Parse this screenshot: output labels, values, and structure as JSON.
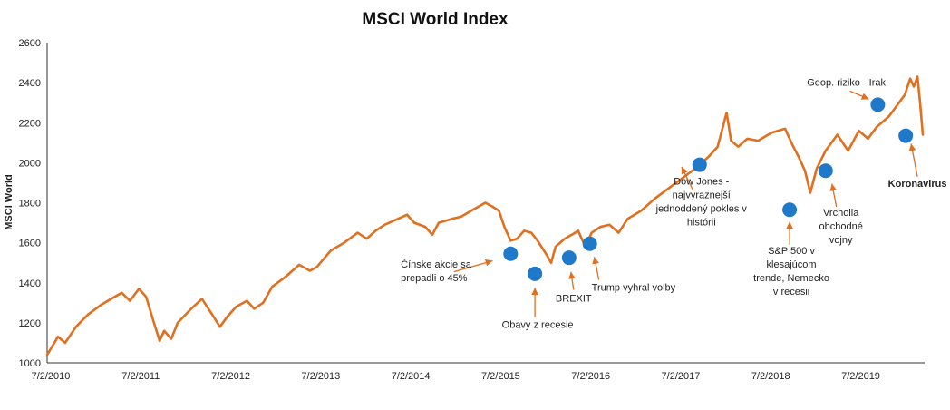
{
  "colors": {
    "line": "#E07020",
    "marker": "#1F78C8",
    "arrow": "#E07020",
    "axis": "#333333"
  },
  "chart_data": {
    "type": "line",
    "title": "MSCI World Index",
    "ylabel": "MSCI World",
    "xlabel": "",
    "ylim": [
      1000,
      2600
    ],
    "yticks": [
      1000,
      1200,
      1400,
      1600,
      1800,
      2000,
      2200,
      2400,
      2600
    ],
    "xlim": [
      2010.5,
      2020.25
    ],
    "xticks": [
      {
        "x": 2010.5,
        "label": "7/2/2010"
      },
      {
        "x": 2011.5,
        "label": "7/2/2011"
      },
      {
        "x": 2012.5,
        "label": "7/2/2012"
      },
      {
        "x": 2013.5,
        "label": "7/2/2013"
      },
      {
        "x": 2014.5,
        "label": "7/2/2014"
      },
      {
        "x": 2015.5,
        "label": "7/2/2015"
      },
      {
        "x": 2016.5,
        "label": "7/2/2016"
      },
      {
        "x": 2017.5,
        "label": "7/2/2017"
      },
      {
        "x": 2018.5,
        "label": "7/2/2018"
      },
      {
        "x": 2019.5,
        "label": "7/2/2019"
      }
    ],
    "series": [
      {
        "name": "MSCI World",
        "points": [
          [
            2010.5,
            1040
          ],
          [
            2010.62,
            1130
          ],
          [
            2010.7,
            1100
          ],
          [
            2010.82,
            1180
          ],
          [
            2010.95,
            1240
          ],
          [
            2011.1,
            1290
          ],
          [
            2011.25,
            1330
          ],
          [
            2011.33,
            1350
          ],
          [
            2011.42,
            1310
          ],
          [
            2011.52,
            1370
          ],
          [
            2011.6,
            1330
          ],
          [
            2011.68,
            1210
          ],
          [
            2011.75,
            1110
          ],
          [
            2011.8,
            1160
          ],
          [
            2011.88,
            1120
          ],
          [
            2011.95,
            1200
          ],
          [
            2012.1,
            1270
          ],
          [
            2012.22,
            1320
          ],
          [
            2012.35,
            1230
          ],
          [
            2012.42,
            1180
          ],
          [
            2012.5,
            1230
          ],
          [
            2012.6,
            1280
          ],
          [
            2012.72,
            1310
          ],
          [
            2012.8,
            1270
          ],
          [
            2012.9,
            1300
          ],
          [
            2013.0,
            1380
          ],
          [
            2013.15,
            1430
          ],
          [
            2013.3,
            1490
          ],
          [
            2013.42,
            1460
          ],
          [
            2013.5,
            1480
          ],
          [
            2013.65,
            1560
          ],
          [
            2013.8,
            1600
          ],
          [
            2013.95,
            1650
          ],
          [
            2014.05,
            1620
          ],
          [
            2014.15,
            1660
          ],
          [
            2014.25,
            1690
          ],
          [
            2014.4,
            1720
          ],
          [
            2014.5,
            1740
          ],
          [
            2014.58,
            1700
          ],
          [
            2014.7,
            1680
          ],
          [
            2014.78,
            1640
          ],
          [
            2014.85,
            1700
          ],
          [
            2015.0,
            1720
          ],
          [
            2015.1,
            1730
          ],
          [
            2015.25,
            1770
          ],
          [
            2015.37,
            1800
          ],
          [
            2015.45,
            1780
          ],
          [
            2015.52,
            1760
          ],
          [
            2015.58,
            1680
          ],
          [
            2015.65,
            1610
          ],
          [
            2015.72,
            1620
          ],
          [
            2015.8,
            1660
          ],
          [
            2015.88,
            1650
          ],
          [
            2015.95,
            1610
          ],
          [
            2016.05,
            1540
          ],
          [
            2016.1,
            1500
          ],
          [
            2016.15,
            1580
          ],
          [
            2016.25,
            1620
          ],
          [
            2016.33,
            1640
          ],
          [
            2016.4,
            1660
          ],
          [
            2016.48,
            1580
          ],
          [
            2016.55,
            1650
          ],
          [
            2016.65,
            1680
          ],
          [
            2016.75,
            1690
          ],
          [
            2016.85,
            1650
          ],
          [
            2016.95,
            1720
          ],
          [
            2017.1,
            1760
          ],
          [
            2017.25,
            1820
          ],
          [
            2017.4,
            1870
          ],
          [
            2017.55,
            1920
          ],
          [
            2017.7,
            1970
          ],
          [
            2017.85,
            2030
          ],
          [
            2017.95,
            2080
          ],
          [
            2018.05,
            2250
          ],
          [
            2018.1,
            2110
          ],
          [
            2018.18,
            2080
          ],
          [
            2018.28,
            2120
          ],
          [
            2018.4,
            2110
          ],
          [
            2018.55,
            2150
          ],
          [
            2018.7,
            2170
          ],
          [
            2018.78,
            2090
          ],
          [
            2018.85,
            2030
          ],
          [
            2018.92,
            1960
          ],
          [
            2018.98,
            1850
          ],
          [
            2019.05,
            1970
          ],
          [
            2019.15,
            2060
          ],
          [
            2019.28,
            2140
          ],
          [
            2019.4,
            2060
          ],
          [
            2019.52,
            2160
          ],
          [
            2019.62,
            2120
          ],
          [
            2019.72,
            2180
          ],
          [
            2019.85,
            2230
          ],
          [
            2019.95,
            2290
          ],
          [
            2020.03,
            2340
          ],
          [
            2020.09,
            2420
          ],
          [
            2020.13,
            2380
          ],
          [
            2020.17,
            2430
          ],
          [
            2020.2,
            2300
          ],
          [
            2020.23,
            2140
          ]
        ]
      }
    ],
    "markers": [
      {
        "x": 2015.65,
        "y": 1545
      },
      {
        "x": 2015.92,
        "y": 1445
      },
      {
        "x": 2016.3,
        "y": 1525
      },
      {
        "x": 2016.53,
        "y": 1595
      },
      {
        "x": 2017.75,
        "y": 1990
      },
      {
        "x": 2018.75,
        "y": 1765
      },
      {
        "x": 2019.15,
        "y": 1960
      },
      {
        "x": 2019.73,
        "y": 2290
      },
      {
        "x": 2020.04,
        "y": 2135
      }
    ],
    "annotations": [
      {
        "lines": [
          "Čínske akcie sa",
          "prepadli o 45%"
        ],
        "bold": false,
        "tx": 2014.43,
        "ty": 1475,
        "anchor": "start",
        "arrow": [
          2015.02,
          1455,
          2015.45,
          1510
        ]
      },
      {
        "lines": [
          "Obavy z recesie"
        ],
        "bold": false,
        "tx": 2015.95,
        "ty": 1175,
        "anchor": "middle",
        "arrow": [
          2015.92,
          1228,
          2015.92,
          1375
        ]
      },
      {
        "lines": [
          "BREXIT"
        ],
        "bold": false,
        "tx": 2016.35,
        "ty": 1305,
        "anchor": "middle",
        "arrow": [
          2016.35,
          1365,
          2016.32,
          1455
        ]
      },
      {
        "lines": [
          "Trump vyhral volby"
        ],
        "bold": false,
        "tx": 2016.55,
        "ty": 1360,
        "anchor": "start",
        "arrow": [
          2016.63,
          1415,
          2016.58,
          1530
        ]
      },
      {
        "lines": [
          "Dow Jones -",
          "najvyraznejší",
          "jednoddený pokles v",
          "histórii"
        ],
        "bold": false,
        "tx": 2017.77,
        "ty": 1890,
        "anchor": "middle",
        "arrow": [
          2017.68,
          1860,
          2017.55,
          1980
        ]
      },
      {
        "lines": [
          "S&P 500 v",
          "klesajúcom",
          "trende, Nemecko",
          "v recesii"
        ],
        "bold": false,
        "tx": 2018.77,
        "ty": 1545,
        "anchor": "middle",
        "arrow": [
          2018.75,
          1590,
          2018.75,
          1705
        ]
      },
      {
        "lines": [
          "Vrcholia",
          "obchodné",
          "vojny"
        ],
        "bold": false,
        "tx": 2019.32,
        "ty": 1735,
        "anchor": "middle",
        "arrow": [
          2019.27,
          1780,
          2019.22,
          1895
        ]
      },
      {
        "lines": [
          "Geop. riziko - Irak"
        ],
        "bold": false,
        "tx": 2019.38,
        "ty": 2385,
        "anchor": "middle",
        "arrow": [
          2019.42,
          2358,
          2019.63,
          2318
        ]
      },
      {
        "lines": [
          "Koronavirus"
        ],
        "bold": true,
        "tx": 2020.17,
        "ty": 1880,
        "anchor": "middle",
        "arrow": [
          2020.17,
          1930,
          2020.1,
          2095
        ]
      }
    ]
  }
}
